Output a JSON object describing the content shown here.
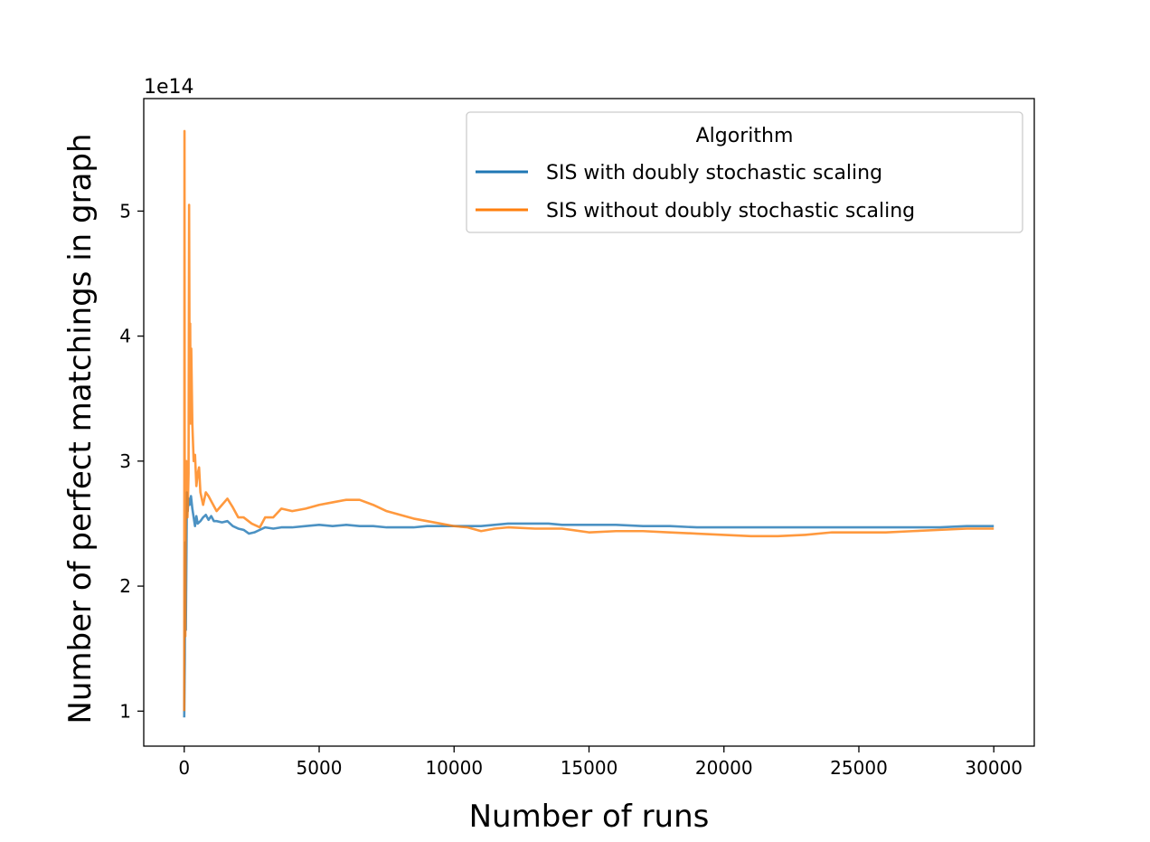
{
  "chart_data": {
    "type": "line",
    "title": "",
    "xlabel": "Number of runs",
    "ylabel": "Number of perfect matchings in graph",
    "y_offset_text": "1e14",
    "y_scale_factor": 100000000000000,
    "xlim": [
      -1500,
      31500
    ],
    "ylim": [
      0.72,
      5.9
    ],
    "x_ticks": [
      0,
      5000,
      10000,
      15000,
      20000,
      25000,
      30000
    ],
    "x_tick_labels": [
      "0",
      "5000",
      "10000",
      "15000",
      "20000",
      "25000",
      "30000"
    ],
    "y_ticks": [
      1,
      2,
      3,
      4,
      5
    ],
    "y_tick_labels": [
      "1",
      "2",
      "3",
      "4",
      "5"
    ],
    "grid": false,
    "legend": {
      "title": "Algorithm",
      "placement": "upper right"
    },
    "series": [
      {
        "name": "SIS with doubly stochastic scaling",
        "color": "#1f77b4",
        "x": [
          0,
          20,
          40,
          60,
          80,
          100,
          130,
          160,
          200,
          250,
          300,
          350,
          400,
          450,
          500,
          600,
          700,
          800,
          900,
          1000,
          1100,
          1200,
          1400,
          1600,
          1800,
          2000,
          2200,
          2400,
          2600,
          2800,
          3000,
          3300,
          3600,
          4000,
          4500,
          5000,
          5500,
          6000,
          6500,
          7000,
          7500,
          8000,
          8500,
          9000,
          9500,
          10000,
          10500,
          11000,
          11500,
          12000,
          12500,
          13000,
          13500,
          14000,
          15000,
          16000,
          17000,
          18000,
          19000,
          20000,
          21000,
          22000,
          23000,
          24000,
          25000,
          26000,
          27000,
          28000,
          29000,
          30000
        ],
        "values": [
          0.95,
          1.4,
          2.35,
          1.65,
          2.2,
          2.75,
          2.6,
          2.7,
          2.65,
          2.72,
          2.62,
          2.55,
          2.48,
          2.56,
          2.5,
          2.52,
          2.55,
          2.57,
          2.53,
          2.56,
          2.52,
          2.52,
          2.51,
          2.52,
          2.48,
          2.46,
          2.45,
          2.42,
          2.43,
          2.45,
          2.47,
          2.46,
          2.47,
          2.47,
          2.48,
          2.49,
          2.48,
          2.49,
          2.48,
          2.48,
          2.47,
          2.47,
          2.47,
          2.48,
          2.48,
          2.48,
          2.48,
          2.48,
          2.49,
          2.5,
          2.5,
          2.5,
          2.5,
          2.49,
          2.49,
          2.49,
          2.48,
          2.48,
          2.47,
          2.47,
          2.47,
          2.47,
          2.47,
          2.47,
          2.47,
          2.47,
          2.47,
          2.47,
          2.48,
          2.48
        ]
      },
      {
        "name": "SIS without doubly stochastic scaling",
        "color": "#ff7f0e",
        "x": [
          0,
          10,
          20,
          40,
          60,
          80,
          100,
          120,
          140,
          160,
          180,
          200,
          220,
          240,
          260,
          300,
          350,
          400,
          450,
          500,
          550,
          600,
          700,
          800,
          900,
          1000,
          1200,
          1400,
          1600,
          1800,
          2000,
          2200,
          2500,
          2800,
          3000,
          3300,
          3600,
          4000,
          4500,
          5000,
          5500,
          6000,
          6500,
          7000,
          7500,
          8000,
          8500,
          9000,
          9500,
          10000,
          10500,
          11000,
          11500,
          12000,
          13000,
          14000,
          15000,
          16000,
          17000,
          18000,
          19000,
          20000,
          21000,
          22000,
          23000,
          24000,
          25000,
          26000,
          27000,
          28000,
          29000,
          30000
        ],
        "values": [
          1.0,
          5.64,
          2.1,
          1.6,
          2.8,
          3.0,
          2.8,
          2.55,
          2.7,
          2.9,
          5.05,
          3.6,
          4.1,
          3.3,
          3.9,
          3.3,
          3.0,
          3.05,
          2.8,
          2.9,
          2.95,
          2.75,
          2.65,
          2.75,
          2.72,
          2.68,
          2.6,
          2.65,
          2.7,
          2.63,
          2.55,
          2.55,
          2.5,
          2.47,
          2.55,
          2.55,
          2.62,
          2.6,
          2.62,
          2.65,
          2.67,
          2.69,
          2.69,
          2.65,
          2.6,
          2.57,
          2.54,
          2.52,
          2.5,
          2.48,
          2.47,
          2.44,
          2.46,
          2.47,
          2.46,
          2.46,
          2.43,
          2.44,
          2.44,
          2.43,
          2.42,
          2.41,
          2.4,
          2.4,
          2.41,
          2.43,
          2.43,
          2.43,
          2.44,
          2.45,
          2.46,
          2.46
        ]
      }
    ]
  }
}
